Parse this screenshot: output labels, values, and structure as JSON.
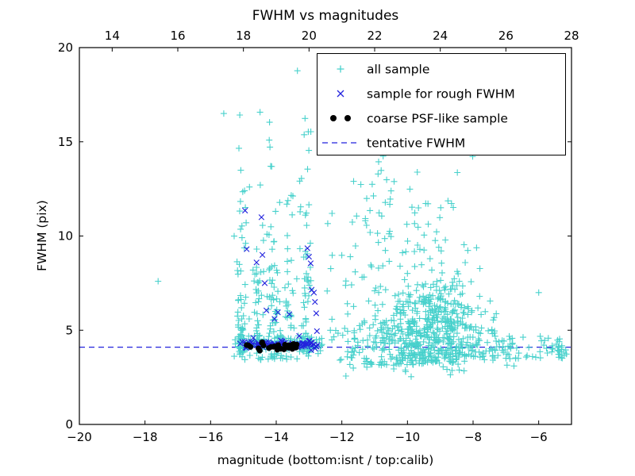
{
  "chart_data": {
    "type": "scatter",
    "title": "FWHM vs magnitudes",
    "xlabel": "magnitude (bottom:isnt / top:calib)",
    "ylabel": "FWHM (pix)",
    "background_color": "#ffffff",
    "x_axis_bottom": {
      "label": "magnitude (bottom:isnt / top:calib)",
      "range": [
        -20,
        -5
      ],
      "ticks": [
        -20,
        -18,
        -16,
        -14,
        -12,
        -10,
        -8,
        -6
      ],
      "tick_labels": [
        "−20",
        "−18",
        "−16",
        "−14",
        "−12",
        "−10",
        "−8",
        "−6"
      ]
    },
    "x_axis_top": {
      "name": "calib",
      "ticks": [
        14,
        16,
        18,
        20,
        22,
        24,
        26,
        28
      ],
      "tick_labels": [
        "14",
        "16",
        "18",
        "20",
        "22",
        "24",
        "26",
        "28"
      ],
      "offset_from_bottom": 33
    },
    "y_axis": {
      "label": "FWHM (pix)",
      "range": [
        0,
        20
      ],
      "ticks": [
        0,
        5,
        10,
        15,
        20
      ],
      "tick_labels": [
        "0",
        "5",
        "10",
        "15",
        "20"
      ]
    },
    "grid": false,
    "legend_position": "upper right",
    "legend": [
      {
        "label": "all sample",
        "marker": "plus",
        "color": "#48d1cc"
      },
      {
        "label": "sample for rough FWHM",
        "marker": "cross",
        "color": "#2222dd"
      },
      {
        "label": "coarse PSF-like sample",
        "marker": "dot",
        "color": "#000000"
      },
      {
        "label": "tentative FWHM",
        "marker": "dashed-line",
        "color": "#2222dd"
      }
    ],
    "tentative_fwhm": {
      "value": 4.1,
      "color": "#2222dd",
      "style": "dashed"
    },
    "series": [
      {
        "name": "all sample",
        "marker": "plus",
        "color": "#48d1cc",
        "points": [
          [
            -17.6,
            7.6
          ],
          [
            -15.6,
            16.5
          ],
          [
            -12.3,
            11.2
          ],
          [
            -12.35,
            5.0
          ],
          [
            -6.0,
            7.0
          ],
          [
            -5.4,
            4.1
          ],
          [
            -5.6,
            3.85
          ]
        ],
        "clusters": [
          {
            "type": "column",
            "count": 65,
            "x": -15.05,
            "xsd": 0.1,
            "ymin": 3.4,
            "yscale": 4.2,
            "ymax": 19.9
          },
          {
            "type": "column",
            "count": 40,
            "x": -14.55,
            "xsd": 0.08,
            "ymin": 3.4,
            "yscale": 3.2,
            "ymax": 19.5
          },
          {
            "type": "column",
            "count": 60,
            "x": -14.1,
            "xsd": 0.1,
            "ymin": 3.4,
            "yscale": 4.2,
            "ymax": 19.9
          },
          {
            "type": "column",
            "count": 40,
            "x": -13.65,
            "xsd": 0.08,
            "ymin": 3.4,
            "yscale": 3.0,
            "ymax": 18.5
          },
          {
            "type": "column",
            "count": 65,
            "x": -13.1,
            "xsd": 0.12,
            "ymin": 3.4,
            "yscale": 3.6,
            "ymax": 19.7
          },
          {
            "type": "strip",
            "count": 110,
            "xmin": -15.15,
            "xmax": -12.6,
            "ymean": 4.3,
            "ysd": 0.3
          },
          {
            "type": "cloud",
            "count": 520,
            "xmean": -9.6,
            "xsd": 1.35,
            "xmin": -12.55,
            "xmax": -6.6,
            "xref": -6.5,
            "ybase_a": 3.45,
            "ybase_b": 0.09,
            "yscale_a": 0.7,
            "yscale_b": 0.42,
            "ymax": 15.6
          },
          {
            "type": "blob",
            "count": 190,
            "xmean": -9.2,
            "xsd": 0.6,
            "ymean": 5.6,
            "ysd": 1.1,
            "ymin": 3.6
          },
          {
            "type": "blob",
            "count": 45,
            "xmean": -10.2,
            "xsd": 0.95,
            "ymean": 11.3,
            "ysd": 1.9,
            "ymin": 8.0
          },
          {
            "type": "blob",
            "count": 8,
            "xmean": -9.8,
            "xsd": 0.9,
            "ymean": 17.3,
            "ysd": 1.0,
            "ymin": 15.5
          },
          {
            "type": "blob",
            "count": 12,
            "xmean": -9.4,
            "xsd": 1.2,
            "ymean": 2.75,
            "ysd": 0.25,
            "ymin": 2.2
          },
          {
            "type": "strip",
            "count": 55,
            "xmin": -7.3,
            "xmax": -5.15,
            "ymean": 4.05,
            "ysd": 0.4
          },
          {
            "type": "blob",
            "count": 10,
            "xmean": -7.6,
            "xsd": 0.5,
            "ymean": 5.7,
            "ysd": 0.8,
            "ymin": 4.6
          }
        ]
      },
      {
        "name": "sample for rough FWHM",
        "marker": "cross",
        "color": "#2222dd",
        "points": [
          [
            -14.95,
            11.35
          ],
          [
            -14.9,
            9.3
          ],
          [
            -14.6,
            8.6
          ],
          [
            -14.45,
            11.0
          ],
          [
            -14.42,
            9.0
          ],
          [
            -14.35,
            7.5
          ],
          [
            -14.3,
            6.05
          ],
          [
            -14.05,
            5.6
          ],
          [
            -13.95,
            5.95
          ],
          [
            -13.6,
            5.85
          ],
          [
            -13.05,
            9.35
          ],
          [
            -13.0,
            8.9
          ],
          [
            -12.95,
            8.55
          ],
          [
            -12.92,
            7.15
          ],
          [
            -12.85,
            7.0
          ],
          [
            -12.82,
            6.5
          ],
          [
            -12.78,
            5.9
          ],
          [
            -12.76,
            4.95
          ],
          [
            -13.3,
            4.7
          ],
          [
            -14.7,
            4.6
          ]
        ],
        "clusters": [
          {
            "type": "strip",
            "count": 85,
            "xmin": -15.1,
            "xmax": -12.72,
            "ymean": 4.25,
            "ysd": 0.1
          }
        ]
      },
      {
        "name": "coarse PSF-like sample",
        "marker": "dot",
        "color": "#000000",
        "points": [
          [
            -14.5,
            3.92
          ]
        ],
        "clusters": [
          {
            "type": "strip",
            "count": 26,
            "xmin": -15.0,
            "xmax": -13.35,
            "ymean": 4.15,
            "ysd": 0.08
          }
        ]
      }
    ]
  }
}
